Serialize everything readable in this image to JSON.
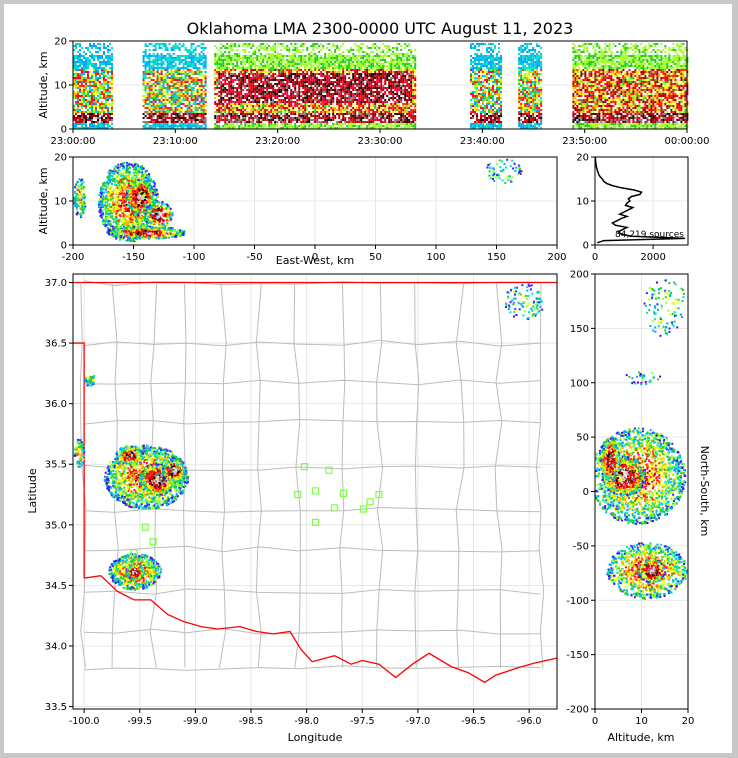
{
  "chart_data": [
    {
      "id": "time-height",
      "type": "heatmap",
      "title": "Oklahoma LMA 2300-0000 UTC August 11, 2023",
      "ylabel": "Altitude, km",
      "xlabel": "",
      "x_ticks": [
        "23:00:00",
        "23:10:00",
        "23:20:00",
        "23:30:00",
        "23:40:00",
        "23:50:00",
        "00:00:00"
      ],
      "y_ticks": [
        "0",
        "10",
        "20"
      ],
      "xlim": [
        0,
        60
      ],
      "ylim": [
        0,
        20
      ],
      "activity_segments_min": [
        [
          0.0,
          3.8
        ],
        [
          6.8,
          13.0
        ],
        [
          13.8,
          33.5
        ],
        [
          38.8,
          41.8
        ],
        [
          43.5,
          45.8
        ],
        [
          48.8,
          60.0
        ]
      ],
      "grid": true
    },
    {
      "id": "ew-height",
      "type": "heatmap",
      "ylabel": "Altitude, km",
      "xlabel": "East-West, km",
      "x_ticks": [
        "-200",
        "-150",
        "-100",
        "-50",
        "0",
        "50",
        "100",
        "150",
        "200"
      ],
      "y_ticks": [
        "0",
        "10",
        "20"
      ],
      "xlim": [
        -200,
        200
      ],
      "ylim": [
        0,
        20
      ],
      "grid": true
    },
    {
      "id": "altitude-histogram",
      "type": "line",
      "annotation": "84,219 sources",
      "x_ticks": [
        "0",
        "2000"
      ],
      "y_ticks": [
        "0",
        "10",
        "20"
      ],
      "xlim": [
        0,
        3200
      ],
      "ylim": [
        0,
        20
      ],
      "profile": {
        "alt_km": [
          0.5,
          1.0,
          1.5,
          2.0,
          2.5,
          3.0,
          3.5,
          4.0,
          4.5,
          5.0,
          5.5,
          6.0,
          6.5,
          7.0,
          7.5,
          8.0,
          8.5,
          9.0,
          9.5,
          10.0,
          10.5,
          11.0,
          11.5,
          12.0,
          12.5,
          13.0,
          13.5,
          14.0,
          14.5,
          15.0,
          15.5,
          16.0,
          17.0,
          18.0,
          19.0,
          20.0
        ],
        "count": [
          80,
          300,
          3100,
          1250,
          900,
          800,
          950,
          1100,
          700,
          600,
          750,
          900,
          1100,
          850,
          1000,
          1150,
          1300,
          1050,
          1100,
          1200,
          1150,
          1250,
          1550,
          1600,
          1350,
          900,
          600,
          400,
          300,
          250,
          180,
          130,
          80,
          40,
          20,
          10
        ]
      },
      "grid": true
    },
    {
      "id": "plan-view",
      "type": "heatmap",
      "xlabel": "Longitude",
      "ylabel": "Latitude",
      "x_ticks": [
        "-100.0",
        "-99.5",
        "-99.0",
        "-98.5",
        "-98.0",
        "-97.5",
        "-97.0",
        "-96.5",
        "-96.0"
      ],
      "y_ticks": [
        "33.5",
        "34.0",
        "34.5",
        "35.0",
        "35.5",
        "36.0",
        "36.5",
        "37.0"
      ],
      "xlim": [
        -100.1,
        -95.75
      ],
      "ylim": [
        33.48,
        37.07
      ],
      "station_color": "#7cff3c",
      "stations": [
        {
          "lon": -98.02,
          "lat": 35.48
        },
        {
          "lon": -97.8,
          "lat": 35.45
        },
        {
          "lon": -98.08,
          "lat": 35.25
        },
        {
          "lon": -97.92,
          "lat": 35.28
        },
        {
          "lon": -97.67,
          "lat": 35.26
        },
        {
          "lon": -97.35,
          "lat": 35.25
        },
        {
          "lon": -97.43,
          "lat": 35.19
        },
        {
          "lon": -97.75,
          "lat": 35.14
        },
        {
          "lon": -97.49,
          "lat": 35.13
        },
        {
          "lon": -97.92,
          "lat": 35.02
        },
        {
          "lon": -99.45,
          "lat": 34.98
        },
        {
          "lon": -99.38,
          "lat": 34.86
        },
        {
          "lon": -99.55,
          "lat": 34.77
        }
      ],
      "grid": true
    },
    {
      "id": "ns-height",
      "type": "heatmap",
      "xlabel": "Altitude, km",
      "ylabel": "North-South, km",
      "x_ticks": [
        "0",
        "10",
        "20"
      ],
      "y_ticks": [
        "-200",
        "-150",
        "-100",
        "-50",
        "0",
        "50",
        "100",
        "150",
        "200"
      ],
      "xlim": [
        0,
        20
      ],
      "ylim": [
        -200,
        200
      ],
      "grid": true
    }
  ],
  "colors": {
    "density_scale": [
      "#5a00d8",
      "#2a2aff",
      "#00a8ff",
      "#00e0c8",
      "#20d020",
      "#a0ff20",
      "#ffff00",
      "#ffb000",
      "#ff2a00",
      "#ff0040",
      "#e00000",
      "#a00000",
      "#200000",
      "#808080",
      "#d8d8d8"
    ],
    "state_border": "#ff0000",
    "county_lines": "#bdbdbd",
    "grid": "#e0e0e0"
  }
}
